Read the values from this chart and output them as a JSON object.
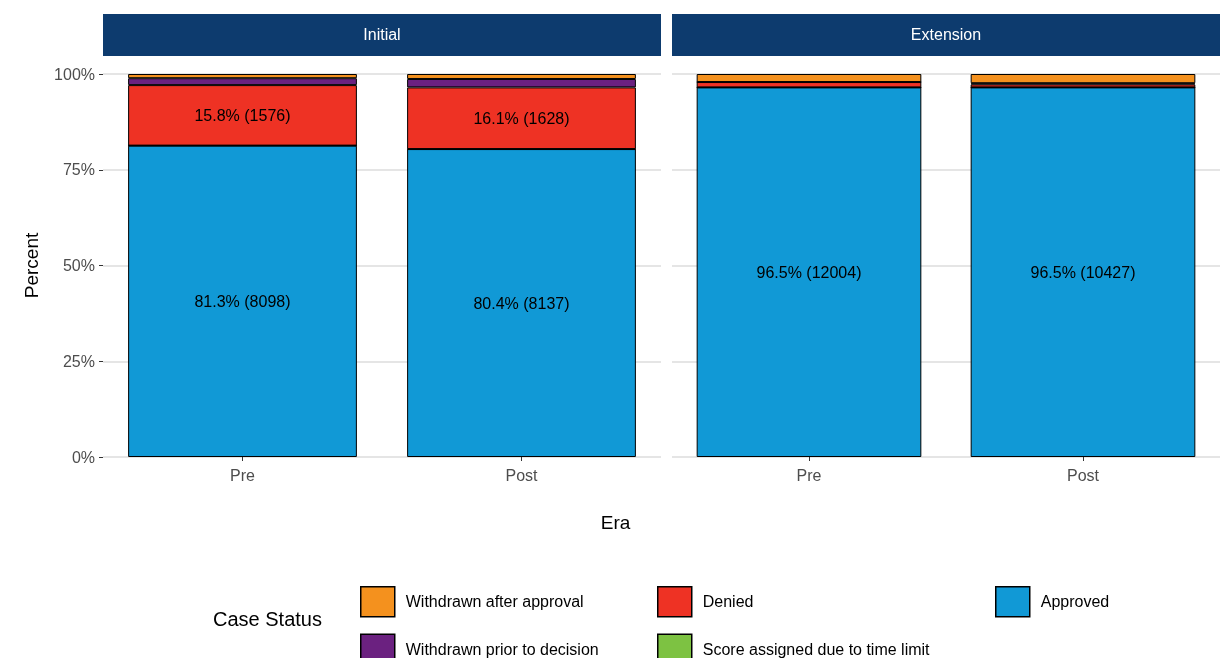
{
  "chart_data": [
    {
      "type": "bar",
      "title": "Initial",
      "ylabel": "Percent",
      "xlabel": "Era",
      "legend_title": "Case Status",
      "legend": "bottom",
      "stacked": true,
      "grid": "y",
      "categories": [
        "Pre",
        "Post"
      ],
      "ylim": [
        0,
        100
      ],
      "yticks": [
        {
          "value": 0,
          "label": "0%"
        },
        {
          "value": 25,
          "label": "25%"
        },
        {
          "value": 50,
          "label": "50%"
        },
        {
          "value": 75,
          "label": "75%"
        },
        {
          "value": 100,
          "label": "100%"
        }
      ],
      "series": [
        {
          "name": "Approved",
          "color": "#1199d6",
          "values": [
            81.3,
            80.4
          ],
          "value_labels": [
            "81.3% (8098)",
            "80.4% (8137)"
          ]
        },
        {
          "name": "Score assigned due to time limit",
          "color": "#7dc242",
          "values": [
            0,
            0
          ]
        },
        {
          "name": "Denied",
          "color": "#ee3224",
          "values": [
            15.8,
            16.1
          ],
          "value_labels": [
            "15.8% (1576)",
            "16.1% (1628)"
          ]
        },
        {
          "name": "Withdrawn prior to decision",
          "color": "#6b2180",
          "values": [
            1.8,
            2.2
          ]
        },
        {
          "name": "Withdrawn after approval",
          "color": "#f4911e",
          "values": [
            1.1,
            1.3
          ]
        }
      ]
    },
    {
      "type": "bar",
      "title": "Extension",
      "stacked": true,
      "grid": "y",
      "tick_labels": "x",
      "legend": false,
      "categories": [
        "Pre",
        "Post"
      ],
      "ylim": [
        0,
        100
      ],
      "yticks": [
        {
          "value": 0,
          "label": null
        },
        {
          "value": 25,
          "label": null
        },
        {
          "value": 50,
          "label": null
        },
        {
          "value": 75,
          "label": null
        },
        {
          "value": 100,
          "label": null
        }
      ],
      "series": [
        {
          "color": "#1199d6",
          "values": [
            96.5,
            96.5
          ],
          "value_labels": [
            "96.5% (12004)",
            "96.5% (10427)"
          ]
        },
        {
          "color": "#7dc242",
          "values": [
            0,
            0
          ]
        },
        {
          "color": "#ee3224",
          "values": [
            1.4,
            0.8
          ]
        },
        {
          "color": "#6b2180",
          "values": [
            0,
            0.3
          ]
        },
        {
          "color": "#f4911e",
          "values": [
            2.1,
            2.4
          ]
        }
      ]
    }
  ]
}
